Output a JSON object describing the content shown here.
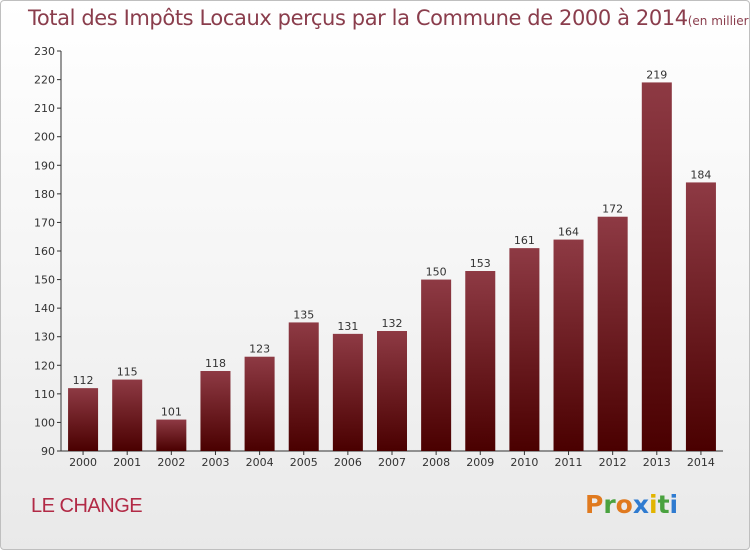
{
  "header": {
    "title": "Total des Impôts Locaux perçus par la Commune de 2000 à 2014",
    "unit": "(en milliers d'€)"
  },
  "commune_name": "LE CHANGE",
  "logo": {
    "text": "Proxiti",
    "letter_colors": [
      "#e07a1f",
      "#4aa23f",
      "#e07a1f",
      "#2f7bd0",
      "#e2b400",
      "#4aa23f",
      "#2f7bd0"
    ]
  },
  "colors": {
    "bar_top": "#8e3a44",
    "bar_bottom": "#4a0000",
    "axis": "#333333",
    "grid": "#dddddd"
  },
  "chart_data": {
    "type": "bar",
    "title": "Total des Impôts Locaux perçus par la Commune de 2000 à 2014",
    "xlabel": "",
    "ylabel": "",
    "ylim": [
      90,
      230
    ],
    "ytick_step": 10,
    "grid": false,
    "categories": [
      "2000",
      "2001",
      "2002",
      "2003",
      "2004",
      "2005",
      "2006",
      "2007",
      "2008",
      "2009",
      "2010",
      "2011",
      "2012",
      "2013",
      "2014"
    ],
    "values": [
      112,
      115,
      101,
      118,
      123,
      135,
      131,
      132,
      150,
      153,
      161,
      164,
      172,
      219,
      184
    ]
  }
}
